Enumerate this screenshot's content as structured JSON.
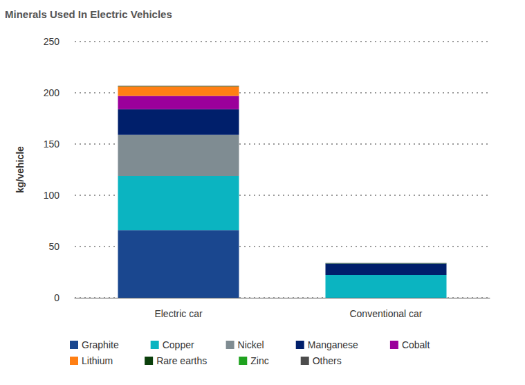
{
  "chart_data": {
    "type": "bar",
    "title": "Minerals Used In Electric Vehicles",
    "y_label": "kg/vehicle",
    "categories": [
      "Electric car",
      "Conventional car"
    ],
    "stacked": true,
    "grid": true,
    "legend": "bottom",
    "ylim": [
      0,
      250
    ],
    "yticks": [
      0,
      50,
      100,
      150,
      200,
      250
    ],
    "series": [
      {
        "name": "Graphite",
        "color": "#1a478f",
        "values": [
          66,
          0
        ]
      },
      {
        "name": "Copper",
        "color": "#0bb4c1",
        "values": [
          53,
          22.3
        ]
      },
      {
        "name": "Nickel",
        "color": "#7f8c92",
        "values": [
          40,
          0
        ]
      },
      {
        "name": "Manganese",
        "color": "#001f6b",
        "values": [
          25,
          11.2
        ]
      },
      {
        "name": "Cobalt",
        "color": "#9b009b",
        "values": [
          13,
          0
        ]
      },
      {
        "name": "Lithium",
        "color": "#ff7f14",
        "values": [
          9,
          0
        ]
      },
      {
        "name": "Rare earths",
        "color": "#0b3f0b",
        "values": [
          0.5,
          0
        ]
      },
      {
        "name": "Zinc",
        "color": "#1fa21f",
        "values": [
          0.1,
          0.1
        ]
      },
      {
        "name": "Others",
        "color": "#4d4d4d",
        "values": [
          0.3,
          0.3
        ]
      }
    ]
  }
}
